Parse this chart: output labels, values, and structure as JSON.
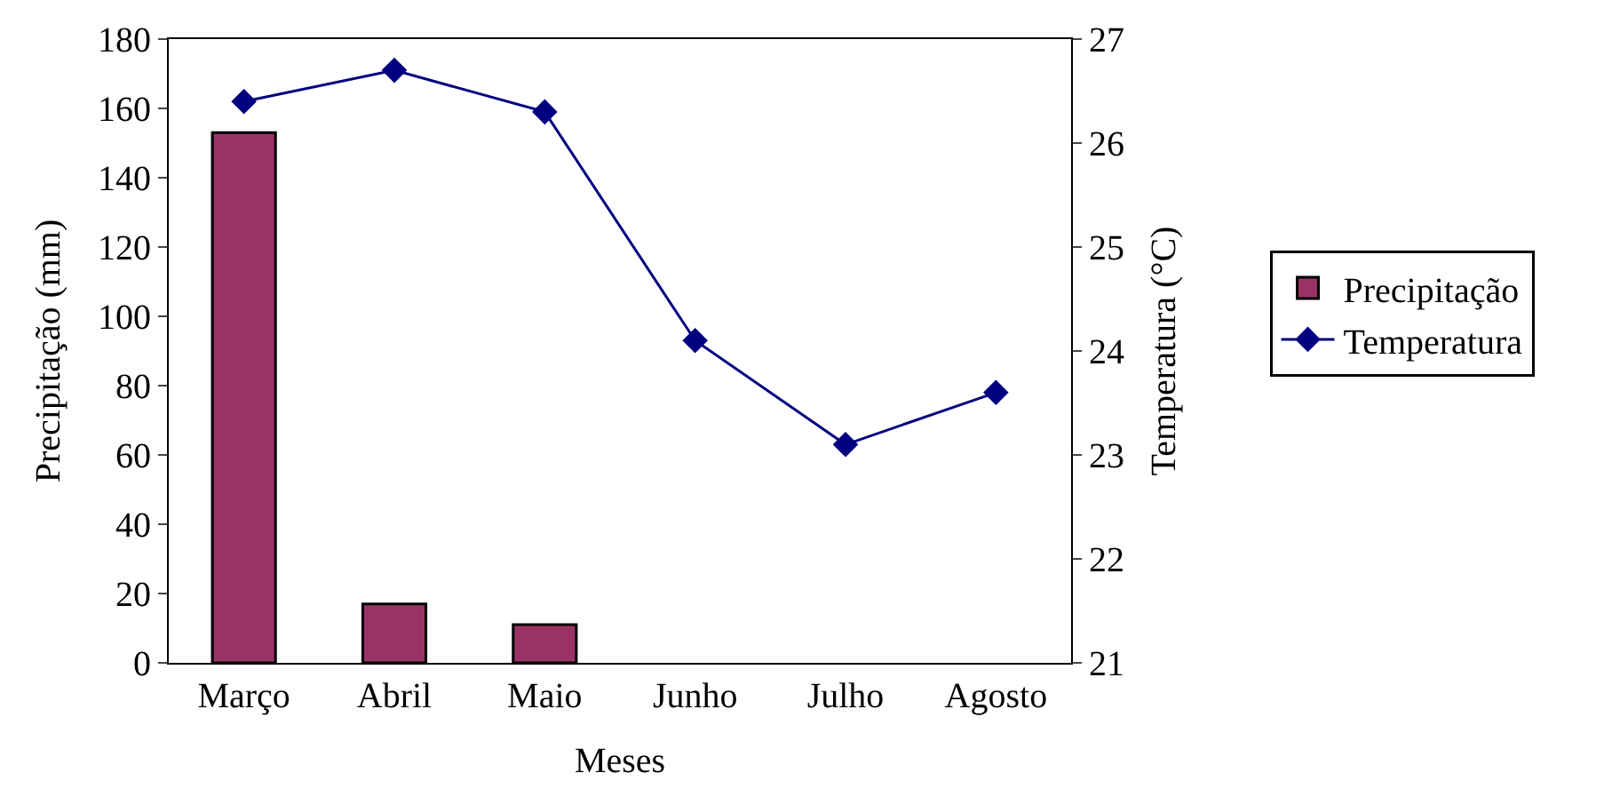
{
  "chart_data": {
    "type": "bar",
    "xlabel": "Meses",
    "ylabel": "Precipitação (mm)",
    "y2label": "Temperatura (°C)",
    "categories": [
      "Março",
      "Abril",
      "Maio",
      "Junho",
      "Julho",
      "Agosto"
    ],
    "series": [
      {
        "name": "Precipitação",
        "color": "#993366",
        "values": [
          153,
          17,
          11,
          null,
          null,
          null
        ]
      },
      {
        "name": "Temperatura",
        "type": "line",
        "axis": "y2",
        "color": "#000080",
        "marker": "diamond",
        "values": [
          26.4,
          26.7,
          26.3,
          24.1,
          23.1,
          23.6
        ]
      }
    ],
    "ylim": [
      0,
      180
    ],
    "yticks": [
      0,
      20,
      40,
      60,
      80,
      100,
      120,
      140,
      160,
      180
    ],
    "y2lim": [
      21,
      27
    ],
    "y2ticks": [
      21,
      22,
      23,
      24,
      25,
      26,
      27
    ],
    "legend": "right"
  }
}
